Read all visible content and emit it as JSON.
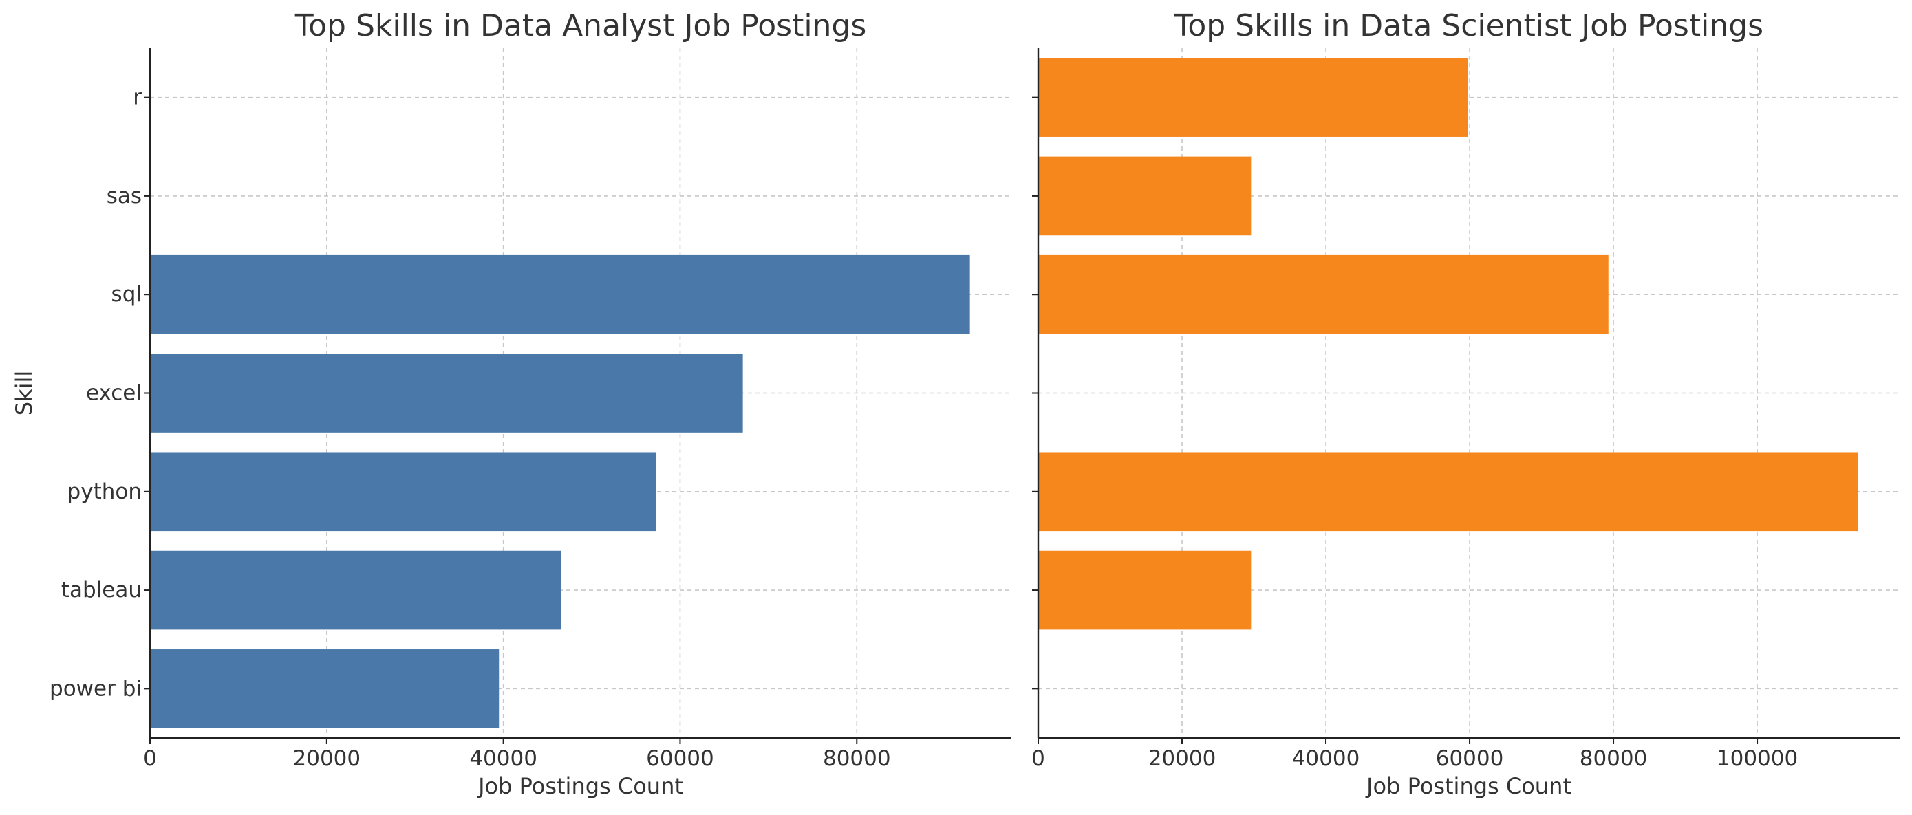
{
  "chart_data": [
    {
      "type": "bar",
      "orientation": "horizontal",
      "title": "Top Skills in Data Analyst Job Postings",
      "xlabel": "Job Postings Count",
      "ylabel": "Skill",
      "categories": [
        "r",
        "sas",
        "sql",
        "excel",
        "python",
        "tableau",
        "power bi"
      ],
      "values": [
        null,
        null,
        92800,
        67100,
        57300,
        46500,
        39500
      ],
      "xlim": [
        0,
        97500
      ],
      "xticks": [
        0,
        20000,
        40000,
        60000,
        80000
      ],
      "color": "#4a78a8",
      "grid": true
    },
    {
      "type": "bar",
      "orientation": "horizontal",
      "title": "Top Skills in Data Scientist Job Postings",
      "xlabel": "Job Postings Count",
      "ylabel": "",
      "categories": [
        "r",
        "sas",
        "sql",
        "excel",
        "python",
        "tableau",
        "power bi"
      ],
      "values": [
        59800,
        29600,
        79300,
        null,
        114000,
        29600,
        null
      ],
      "xlim": [
        0,
        119800
      ],
      "xticks": [
        0,
        20000,
        40000,
        60000,
        80000,
        100000
      ],
      "color": "#f5871c",
      "grid": true
    }
  ]
}
